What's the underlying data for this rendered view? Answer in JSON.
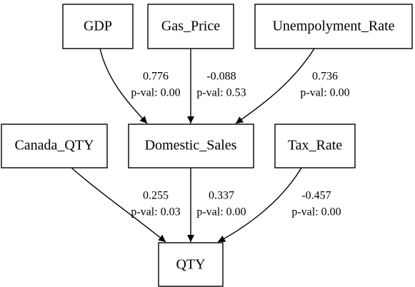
{
  "nodes": [
    {
      "label": "GDP"
    },
    {
      "label": "Gas_Price"
    },
    {
      "label": "Unempolyment_Rate"
    },
    {
      "label": "Canada_QTY"
    },
    {
      "label": "Domestic_Sales"
    },
    {
      "label": "Tax_Rate"
    },
    {
      "label": "QTY"
    }
  ],
  "edges": [
    {
      "coefficient": "0.776",
      "p_value": "p-val: 0.00"
    },
    {
      "coefficient": "-0.088",
      "p_value": "p-val: 0.53"
    },
    {
      "coefficient": "0.736",
      "p_value": "p-val: 0.00"
    },
    {
      "coefficient": "0.255",
      "p_value": "p-val: 0.03"
    },
    {
      "coefficient": "0.337",
      "p_value": "p-val: 0.00"
    },
    {
      "coefficient": "-0.457",
      "p_value": "p-val: 0.00"
    }
  ]
}
